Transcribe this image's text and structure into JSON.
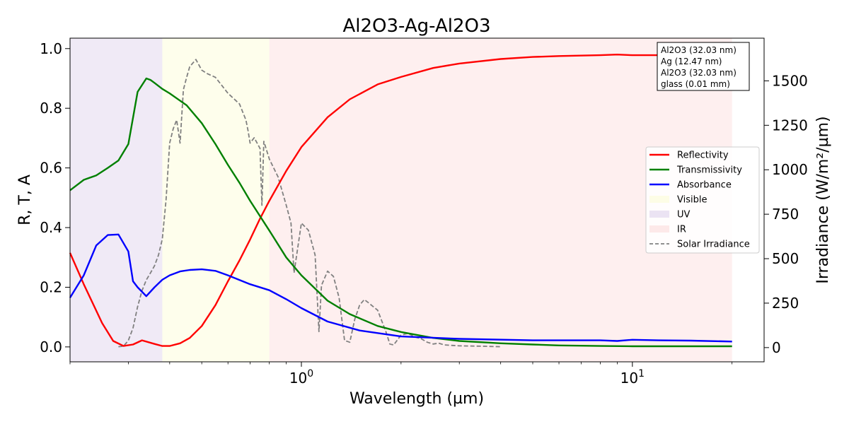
{
  "chart_data": {
    "type": "line",
    "title": "Al2O3-Ag-Al2O3",
    "xlabel": "Wavelength (µm)",
    "ylabel": "R, T, A",
    "y2label": "Irradiance (W/m²/µm)",
    "xscale": "log",
    "xlim": [
      0.2,
      25
    ],
    "ylim": [
      -0.05,
      1.035
    ],
    "y2lim": [
      -80,
      1740
    ],
    "x_ticks": [
      {
        "value": 1,
        "label": "10",
        "exp": "0"
      },
      {
        "value": 10,
        "label": "10",
        "exp": "1"
      }
    ],
    "y_ticks": [
      {
        "value": 0.0,
        "label": "0.0"
      },
      {
        "value": 0.2,
        "label": "0.2"
      },
      {
        "value": 0.4,
        "label": "0.4"
      },
      {
        "value": 0.6,
        "label": "0.6"
      },
      {
        "value": 0.8,
        "label": "0.8"
      },
      {
        "value": 1.0,
        "label": "1.0"
      }
    ],
    "y2_ticks": [
      {
        "value": 0,
        "label": "0"
      },
      {
        "value": 250,
        "label": "250"
      },
      {
        "value": 500,
        "label": "500"
      },
      {
        "value": 750,
        "label": "750"
      },
      {
        "value": 1000,
        "label": "1000"
      },
      {
        "value": 1250,
        "label": "1250"
      },
      {
        "value": 1500,
        "label": "1500"
      }
    ],
    "bands": [
      {
        "name": "UV",
        "x": [
          0.2,
          0.38
        ],
        "color": "#e6dcf0"
      },
      {
        "name": "Visible",
        "x": [
          0.38,
          0.8
        ],
        "color": "#fdfde0"
      },
      {
        "name": "IR",
        "x": [
          0.8,
          20
        ],
        "color": "#fde4e4"
      }
    ],
    "series": [
      {
        "name": "Reflectivity",
        "color": "#ff0000",
        "axis": "left",
        "x": [
          0.2,
          0.22,
          0.25,
          0.27,
          0.29,
          0.31,
          0.33,
          0.36,
          0.38,
          0.4,
          0.43,
          0.46,
          0.5,
          0.55,
          0.6,
          0.65,
          0.7,
          0.75,
          0.8,
          0.9,
          1.0,
          1.2,
          1.4,
          1.7,
          2.0,
          2.5,
          3.0,
          4.0,
          5.0,
          6.0,
          8.0,
          9.0,
          10.0,
          12.0,
          15.0,
          20.0
        ],
        "y": [
          0.315,
          0.21,
          0.08,
          0.02,
          0.003,
          0.008,
          0.022,
          0.01,
          0.003,
          0.003,
          0.012,
          0.03,
          0.07,
          0.14,
          0.22,
          0.29,
          0.36,
          0.43,
          0.49,
          0.59,
          0.67,
          0.77,
          0.83,
          0.88,
          0.905,
          0.935,
          0.95,
          0.965,
          0.972,
          0.975,
          0.978,
          0.98,
          0.978,
          0.978,
          0.978,
          0.978
        ]
      },
      {
        "name": "Transmissivity",
        "color": "#008000",
        "axis": "left",
        "x": [
          0.2,
          0.22,
          0.24,
          0.26,
          0.28,
          0.3,
          0.32,
          0.34,
          0.35,
          0.36,
          0.38,
          0.4,
          0.45,
          0.5,
          0.55,
          0.6,
          0.65,
          0.7,
          0.8,
          0.9,
          1.0,
          1.2,
          1.4,
          1.7,
          2.0,
          2.5,
          3.0,
          4.0,
          5.0,
          6.0,
          8.0,
          10.0,
          15.0,
          20.0
        ],
        "y": [
          0.525,
          0.56,
          0.575,
          0.6,
          0.625,
          0.68,
          0.855,
          0.9,
          0.895,
          0.885,
          0.865,
          0.85,
          0.81,
          0.75,
          0.68,
          0.61,
          0.55,
          0.49,
          0.39,
          0.3,
          0.24,
          0.155,
          0.11,
          0.07,
          0.05,
          0.03,
          0.02,
          0.012,
          0.008,
          0.005,
          0.003,
          0.002,
          0.002,
          0.002
        ]
      },
      {
        "name": "Absorbance",
        "color": "#0000ff",
        "axis": "left",
        "x": [
          0.2,
          0.22,
          0.24,
          0.26,
          0.28,
          0.3,
          0.31,
          0.32,
          0.34,
          0.36,
          0.38,
          0.4,
          0.43,
          0.46,
          0.5,
          0.55,
          0.6,
          0.7,
          0.8,
          0.9,
          1.0,
          1.2,
          1.5,
          2.0,
          3.0,
          5.0,
          8.0,
          9.0,
          10.0,
          12.0,
          15.0,
          20.0
        ],
        "y": [
          0.165,
          0.24,
          0.34,
          0.375,
          0.377,
          0.32,
          0.22,
          0.2,
          0.17,
          0.2,
          0.225,
          0.24,
          0.253,
          0.258,
          0.26,
          0.255,
          0.24,
          0.21,
          0.19,
          0.16,
          0.13,
          0.085,
          0.055,
          0.035,
          0.027,
          0.022,
          0.022,
          0.02,
          0.024,
          0.022,
          0.021,
          0.018
        ]
      },
      {
        "name": "Solar Irradiance",
        "color": "#808080",
        "axis": "right",
        "dashed": true,
        "x": [
          0.28,
          0.29,
          0.3,
          0.31,
          0.32,
          0.33,
          0.34,
          0.35,
          0.36,
          0.37,
          0.38,
          0.39,
          0.4,
          0.41,
          0.42,
          0.43,
          0.44,
          0.45,
          0.46,
          0.47,
          0.48,
          0.5,
          0.52,
          0.55,
          0.6,
          0.65,
          0.68,
          0.69,
          0.7,
          0.72,
          0.75,
          0.76,
          0.77,
          0.8,
          0.85,
          0.9,
          0.93,
          0.95,
          1.0,
          1.05,
          1.1,
          1.13,
          1.15,
          1.2,
          1.25,
          1.3,
          1.35,
          1.4,
          1.45,
          1.5,
          1.55,
          1.6,
          1.7,
          1.8,
          1.85,
          1.9,
          2.0,
          2.1,
          2.2,
          2.3,
          2.4,
          2.5,
          2.6,
          2.7,
          3.0,
          3.5,
          4.0
        ],
        "y": [
          5,
          8,
          40,
          110,
          230,
          320,
          380,
          420,
          460,
          520,
          610,
          830,
          1150,
          1230,
          1280,
          1150,
          1450,
          1520,
          1580,
          1600,
          1620,
          1560,
          1540,
          1520,
          1430,
          1370,
          1280,
          1220,
          1150,
          1180,
          1120,
          800,
          1160,
          1060,
          960,
          800,
          700,
          420,
          700,
          660,
          520,
          90,
          350,
          430,
          400,
          280,
          40,
          30,
          160,
          240,
          270,
          250,
          210,
          90,
          20,
          15,
          70,
          80,
          60,
          50,
          30,
          20,
          25,
          15,
          10,
          8,
          5
        ]
      }
    ],
    "legend": {
      "placement": "center-right",
      "entries": [
        {
          "label": "Reflectivity",
          "color": "#ff0000",
          "kind": "line"
        },
        {
          "label": "Transmissivity",
          "color": "#008000",
          "kind": "line"
        },
        {
          "label": "Absorbance",
          "color": "#0000ff",
          "kind": "line"
        },
        {
          "label": "Visible",
          "color": "#fdfde0",
          "kind": "patch"
        },
        {
          "label": "UV",
          "color": "#e6dcf0",
          "kind": "patch"
        },
        {
          "label": "IR",
          "color": "#fde4e4",
          "kind": "patch"
        },
        {
          "label": "Solar Irradiance",
          "color": "#808080",
          "kind": "dashed"
        }
      ]
    },
    "annotation": {
      "placement": "top-right",
      "lines": [
        "Al2O3 (32.03 nm)",
        "Ag (12.47 nm)",
        "Al2O3 (32.03 nm)",
        "glass (0.01 mm)"
      ]
    }
  }
}
